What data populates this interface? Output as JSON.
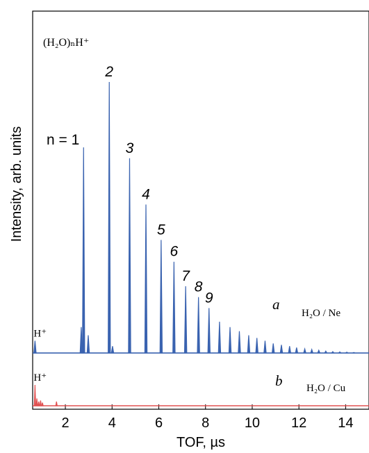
{
  "chart_data": {
    "type": "line",
    "xlabel": "TOF, µs",
    "ylabel": "Intensity, arb. units",
    "xlim": [
      0.6,
      15.0
    ],
    "xticks": [
      2,
      4,
      6,
      8,
      10,
      12,
      14
    ],
    "ylim_a": [
      0,
      1.0
    ],
    "ylim_b": [
      0,
      1.0
    ],
    "grid": false,
    "formula": "(H₂O)ₙH⁺",
    "panels": [
      {
        "label": "a",
        "system": "H₂O / Ne",
        "color": "#3a63b0",
        "baseline": 0.005,
        "peaks": [
          {
            "x": 0.7,
            "y": 0.05,
            "label": "H⁺"
          },
          {
            "x": 2.68,
            "y": 0.1
          },
          {
            "x": 2.78,
            "y": 0.76,
            "label": "n = 1"
          },
          {
            "x": 2.98,
            "y": 0.07
          },
          {
            "x": 3.88,
            "y": 1.0,
            "label": "2"
          },
          {
            "x": 4.02,
            "y": 0.03
          },
          {
            "x": 4.75,
            "y": 0.72,
            "label": "3"
          },
          {
            "x": 5.45,
            "y": 0.55,
            "label": "4"
          },
          {
            "x": 6.1,
            "y": 0.42,
            "label": "5"
          },
          {
            "x": 6.65,
            "y": 0.34,
            "label": "6"
          },
          {
            "x": 7.15,
            "y": 0.25,
            "label": "7"
          },
          {
            "x": 7.7,
            "y": 0.21,
            "label": "8"
          },
          {
            "x": 8.15,
            "y": 0.17,
            "label": "9"
          },
          {
            "x": 8.6,
            "y": 0.12
          },
          {
            "x": 9.05,
            "y": 0.1
          },
          {
            "x": 9.45,
            "y": 0.085
          },
          {
            "x": 9.85,
            "y": 0.07
          },
          {
            "x": 10.2,
            "y": 0.06
          },
          {
            "x": 10.55,
            "y": 0.05
          },
          {
            "x": 10.9,
            "y": 0.04
          },
          {
            "x": 11.25,
            "y": 0.035
          },
          {
            "x": 11.6,
            "y": 0.03
          },
          {
            "x": 11.9,
            "y": 0.025
          },
          {
            "x": 12.25,
            "y": 0.02
          },
          {
            "x": 12.55,
            "y": 0.018
          },
          {
            "x": 12.85,
            "y": 0.015
          },
          {
            "x": 13.15,
            "y": 0.012
          },
          {
            "x": 13.45,
            "y": 0.01
          },
          {
            "x": 13.75,
            "y": 0.009
          },
          {
            "x": 14.05,
            "y": 0.008
          },
          {
            "x": 14.35,
            "y": 0.007
          }
        ]
      },
      {
        "label": "b",
        "system": "H₂O / Cu",
        "color": "#e05050",
        "baseline": 0.0,
        "peaks": [
          {
            "x": 0.7,
            "y": 1.0,
            "label": "H⁺"
          },
          {
            "x": 0.78,
            "y": 0.35
          },
          {
            "x": 0.86,
            "y": 0.2
          },
          {
            "x": 0.94,
            "y": 0.25
          },
          {
            "x": 1.02,
            "y": 0.15
          },
          {
            "x": 1.62,
            "y": 0.2
          }
        ]
      }
    ]
  }
}
